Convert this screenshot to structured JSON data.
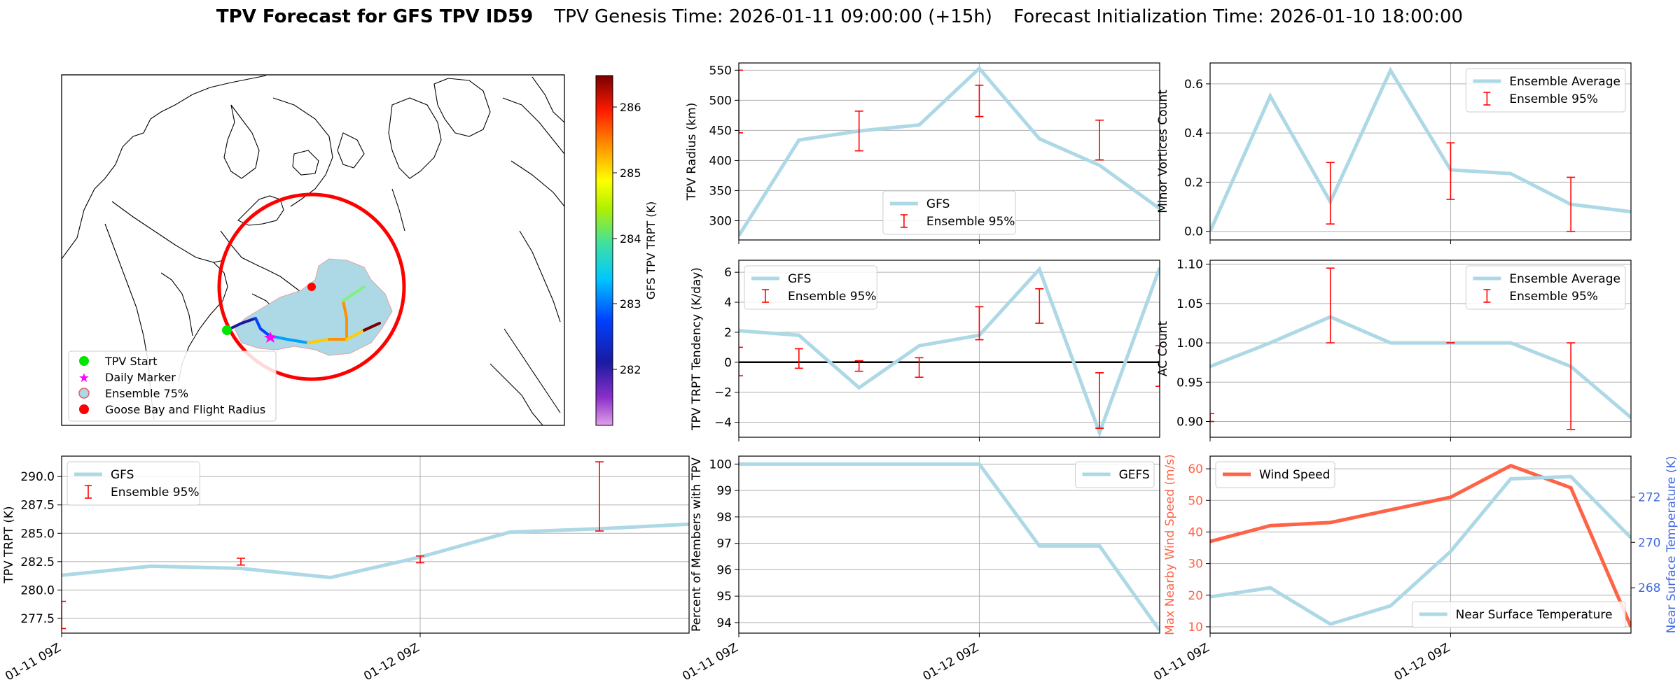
{
  "title": {
    "bold": "TPV Forecast for GFS TPV ID59",
    "genesis": "TPV Genesis Time: 2026-01-11 09:00:00 (+15h)",
    "init": "Forecast Initialization Time: 2026-01-10 18:00:00"
  },
  "colors": {
    "gfs": "#add8e6",
    "ensemble": "#ff0000",
    "wind": "#ff6347",
    "temp_axis": "#4169e1",
    "zero_line": "#000000"
  },
  "map": {
    "colorbar_label": "GFS TPV TRPT (K)",
    "colorbar_ticks": [
      "282",
      "283",
      "284",
      "285",
      "286"
    ],
    "legend": [
      "TPV Start",
      "Daily Marker",
      "Ensemble 75%",
      "Goose Bay and Flight Radius"
    ]
  },
  "chart_data": [
    {
      "id": "trpt",
      "type": "line",
      "ylabel": "TPV TRPT (K)",
      "x": [
        0,
        0.5,
        1,
        1.5,
        2,
        2.5,
        3,
        3.5
      ],
      "x_ticks": [
        {
          "x": 0,
          "label": "01-11 09Z"
        },
        {
          "x": 2,
          "label": "01-12 09Z"
        }
      ],
      "x_range": [
        0,
        3.5
      ],
      "y_range": [
        276.2,
        291.8
      ],
      "y_ticks": [
        277.5,
        280.0,
        282.5,
        285.0,
        287.5,
        290.0
      ],
      "y_tick_labels": [
        "277.5",
        "280.0",
        "282.5",
        "285.0",
        "287.5",
        "290.0"
      ],
      "series": [
        {
          "name": "GFS",
          "values": [
            281.3,
            282.1,
            281.9,
            281.1,
            282.9,
            285.1,
            285.4,
            285.8
          ]
        }
      ],
      "error_bars": {
        "name": "Ensemble 95%",
        "bars": [
          {
            "x": 0,
            "low": 276.6,
            "high": 279.0
          },
          {
            "x": 1,
            "low": 282.2,
            "high": 282.8
          },
          {
            "x": 2,
            "low": 282.4,
            "high": 283.0
          },
          {
            "x": 3,
            "low": 285.2,
            "high": 291.3
          }
        ]
      },
      "legend": "upper-left"
    },
    {
      "id": "radius",
      "type": "line",
      "ylabel": "TPV Radius (km)",
      "x": [
        0,
        0.5,
        1,
        1.5,
        2,
        2.5,
        3,
        3.5
      ],
      "x_ticks": [
        {
          "x": 0,
          "label": ""
        },
        {
          "x": 2,
          "label": ""
        }
      ],
      "x_range": [
        0,
        3.5
      ],
      "y_range": [
        268,
        562
      ],
      "y_ticks": [
        300,
        350,
        400,
        450,
        500,
        550
      ],
      "y_tick_labels": [
        "300",
        "350",
        "400",
        "450",
        "500",
        "550"
      ],
      "series": [
        {
          "name": "GFS",
          "values": [
            275,
            434,
            449,
            459,
            553,
            436,
            392,
            320
          ]
        }
      ],
      "error_bars": {
        "name": "Ensemble 95%",
        "bars": [
          {
            "x": 0,
            "low": 446,
            "high": 550
          },
          {
            "x": 1,
            "low": 416,
            "high": 482
          },
          {
            "x": 2,
            "low": 473,
            "high": 525
          },
          {
            "x": 3,
            "low": 401,
            "high": 467
          }
        ]
      },
      "legend": "lower-center"
    },
    {
      "id": "minor",
      "type": "line",
      "ylabel": "Minor Vortices Count",
      "x": [
        0,
        0.5,
        1,
        1.5,
        2,
        2.5,
        3,
        3.5
      ],
      "x_ticks": [
        {
          "x": 0,
          "label": ""
        },
        {
          "x": 2,
          "label": ""
        }
      ],
      "x_range": [
        0,
        3.5
      ],
      "y_range": [
        -0.035,
        0.685
      ],
      "y_ticks": [
        0.0,
        0.2,
        0.4,
        0.6
      ],
      "y_tick_labels": [
        "0.0",
        "0.2",
        "0.4",
        "0.6"
      ],
      "series": [
        {
          "name": "Ensemble Average",
          "values": [
            0.0,
            0.55,
            0.12,
            0.655,
            0.25,
            0.235,
            0.11,
            0.08
          ]
        }
      ],
      "error_bars": {
        "name": "Ensemble 95%",
        "bars": [
          {
            "x": 1,
            "low": 0.03,
            "high": 0.28
          },
          {
            "x": 2,
            "low": 0.13,
            "high": 0.36
          },
          {
            "x": 3,
            "low": 0.0,
            "high": 0.22
          }
        ]
      },
      "legend": "upper-right"
    },
    {
      "id": "tendency",
      "type": "line",
      "ylabel": "TPV TRPT Tendency (K/day)",
      "x": [
        0,
        0.5,
        1,
        1.5,
        2,
        2.5,
        3,
        3.5
      ],
      "x_ticks": [
        {
          "x": 0,
          "label": ""
        },
        {
          "x": 2,
          "label": ""
        }
      ],
      "x_range": [
        0,
        3.5
      ],
      "y_range": [
        -5.0,
        6.8
      ],
      "y_ticks": [
        -4,
        -2,
        0,
        2,
        4,
        6
      ],
      "y_tick_labels": [
        "−4",
        "−2",
        "0",
        "2",
        "4",
        "6"
      ],
      "series": [
        {
          "name": "GFS",
          "values": [
            2.1,
            1.8,
            -1.7,
            1.1,
            1.8,
            6.2,
            -4.7,
            6.3
          ]
        }
      ],
      "zero_line": 0,
      "error_bars": {
        "name": "Ensemble 95%",
        "bars": [
          {
            "x": 0,
            "low": -0.9,
            "high": 1.0
          },
          {
            "x": 0.5,
            "low": -0.4,
            "high": 0.9
          },
          {
            "x": 1,
            "low": -0.6,
            "high": 0.1
          },
          {
            "x": 1.5,
            "low": -1.0,
            "high": 0.3
          },
          {
            "x": 2,
            "low": 1.5,
            "high": 3.7
          },
          {
            "x": 2.5,
            "low": 2.6,
            "high": 4.9
          },
          {
            "x": 3,
            "low": -4.4,
            "high": -0.7
          },
          {
            "x": 3.5,
            "low": -1.6,
            "high": 1.1
          }
        ]
      },
      "legend": "upper-left"
    },
    {
      "id": "ac",
      "type": "line",
      "ylabel": "AC Count",
      "x": [
        0,
        0.5,
        1,
        1.5,
        2,
        2.5,
        3,
        3.5
      ],
      "x_ticks": [
        {
          "x": 0,
          "label": ""
        },
        {
          "x": 2,
          "label": ""
        }
      ],
      "x_range": [
        0,
        3.5
      ],
      "y_range": [
        0.88,
        1.105
      ],
      "y_ticks": [
        0.9,
        0.95,
        1.0,
        1.05,
        1.1
      ],
      "y_tick_labels": [
        "0.90",
        "0.95",
        "1.00",
        "1.05",
        "1.10"
      ],
      "series": [
        {
          "name": "Ensemble Average",
          "values": [
            0.97,
            1.0,
            1.033,
            1.0,
            1.0,
            1.0,
            0.97,
            0.905
          ]
        }
      ],
      "error_bars": {
        "name": "Ensemble 95%",
        "bars": [
          {
            "x": 0,
            "low": 0.9,
            "high": 0.91
          },
          {
            "x": 1,
            "low": 1.0,
            "high": 1.095
          },
          {
            "x": 2,
            "low": 1.0,
            "high": 1.0
          },
          {
            "x": 3,
            "low": 0.89,
            "high": 1.0
          }
        ]
      },
      "legend": "upper-right"
    },
    {
      "id": "percent",
      "type": "line",
      "ylabel": "Percent of Members with TPV",
      "x": [
        0,
        0.5,
        1,
        1.5,
        2,
        2.5,
        3,
        3.5
      ],
      "x_ticks": [
        {
          "x": 0,
          "label": "01-11 09Z"
        },
        {
          "x": 2,
          "label": "01-12 09Z"
        }
      ],
      "x_range": [
        0,
        3.5
      ],
      "y_range": [
        93.6,
        100.3
      ],
      "y_ticks": [
        94,
        95,
        96,
        97,
        98,
        99,
        100
      ],
      "y_tick_labels": [
        "94",
        "95",
        "96",
        "97",
        "98",
        "99",
        "100"
      ],
      "series": [
        {
          "name": "GEFS",
          "values": [
            100,
            100,
            100,
            100,
            100,
            96.9,
            96.9,
            93.7
          ]
        }
      ],
      "legend": "upper-right"
    },
    {
      "id": "wind",
      "type": "line",
      "ylabel": "Max Nearby Wind Speed (m/s)",
      "ylabel_right": "Near Surface Temperature (K)",
      "x": [
        0,
        0.5,
        1,
        1.5,
        2,
        2.5,
        3,
        3.5
      ],
      "x_ticks": [
        {
          "x": 0,
          "label": "01-11 09Z"
        },
        {
          "x": 2,
          "label": "01-12 09Z"
        }
      ],
      "x_range": [
        0,
        3.5
      ],
      "y_range": [
        8,
        64
      ],
      "y_ticks": [
        10,
        20,
        30,
        40,
        50,
        60
      ],
      "y_tick_labels": [
        "10",
        "20",
        "30",
        "40",
        "50",
        "60"
      ],
      "y_range_right": [
        266.0,
        273.8
      ],
      "y_ticks_right": [
        268,
        270,
        272
      ],
      "y_tick_labels_right": [
        "268",
        "270",
        "272"
      ],
      "series": [
        {
          "name": "Wind Speed",
          "axis": "left",
          "values": [
            37,
            42,
            43,
            47,
            51,
            61,
            54,
            10
          ]
        },
        {
          "name": "Near Surface Temperature",
          "axis": "right",
          "values": [
            267.6,
            268.0,
            266.4,
            267.2,
            269.6,
            272.8,
            272.9,
            270.2
          ]
        }
      ],
      "legend_left": "upper-left",
      "legend_right": "lower-right"
    }
  ]
}
